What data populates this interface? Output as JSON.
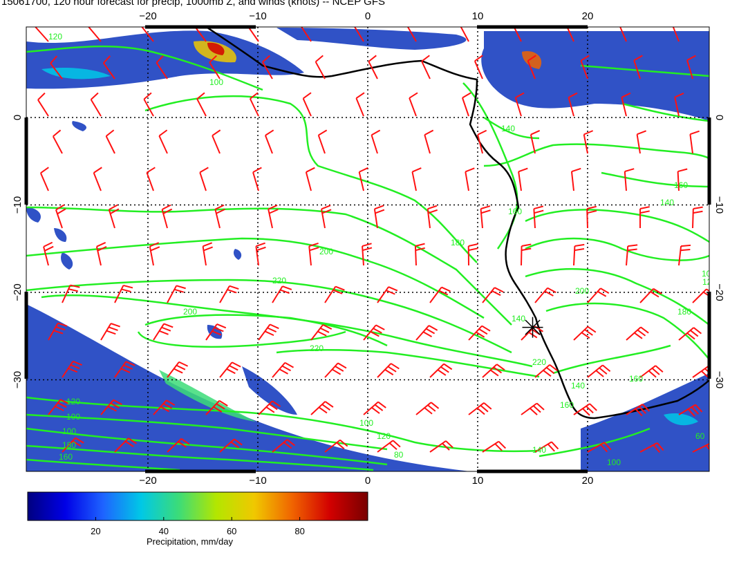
{
  "title": "15061700, 120 hour forecast for precip, 1000mb Z, and winds (knots) -- NCEP GFS",
  "map": {
    "lon_range": [
      -31,
      31
    ],
    "lat_range": [
      -40,
      10
    ],
    "lon_ticks": [
      -20,
      -10,
      0,
      10,
      20
    ],
    "lat_ticks": [
      0,
      -10,
      -20,
      -30
    ],
    "grid": "dotted",
    "station_marker": {
      "lon": 15,
      "lat": -24
    }
  },
  "contours": {
    "field": "1000mb geopotential height",
    "color": "#22ee22",
    "labels": [
      "120",
      "100",
      "140",
      "160",
      "180",
      "200",
      "220",
      "200",
      "220",
      "220",
      "140",
      "120",
      "100",
      "100",
      "180",
      "160",
      "140",
      "120",
      "100",
      "80",
      "60",
      "160",
      "140",
      "200",
      "180",
      "160",
      "140",
      "120",
      "100",
      "100",
      "160"
    ]
  },
  "wind_barbs": {
    "color": "#ff1111"
  },
  "colorbar": {
    "title": "Precipitation, mm/day",
    "ticks": [
      "20",
      "40",
      "60",
      "80"
    ],
    "range": [
      0,
      100
    ],
    "colors": [
      "#000080",
      "#0000e6",
      "#1e64ff",
      "#00c8e6",
      "#3cdc78",
      "#b4e600",
      "#f0c800",
      "#f06400",
      "#d20000",
      "#780000"
    ]
  },
  "precip_color": "#1a3fc0"
}
